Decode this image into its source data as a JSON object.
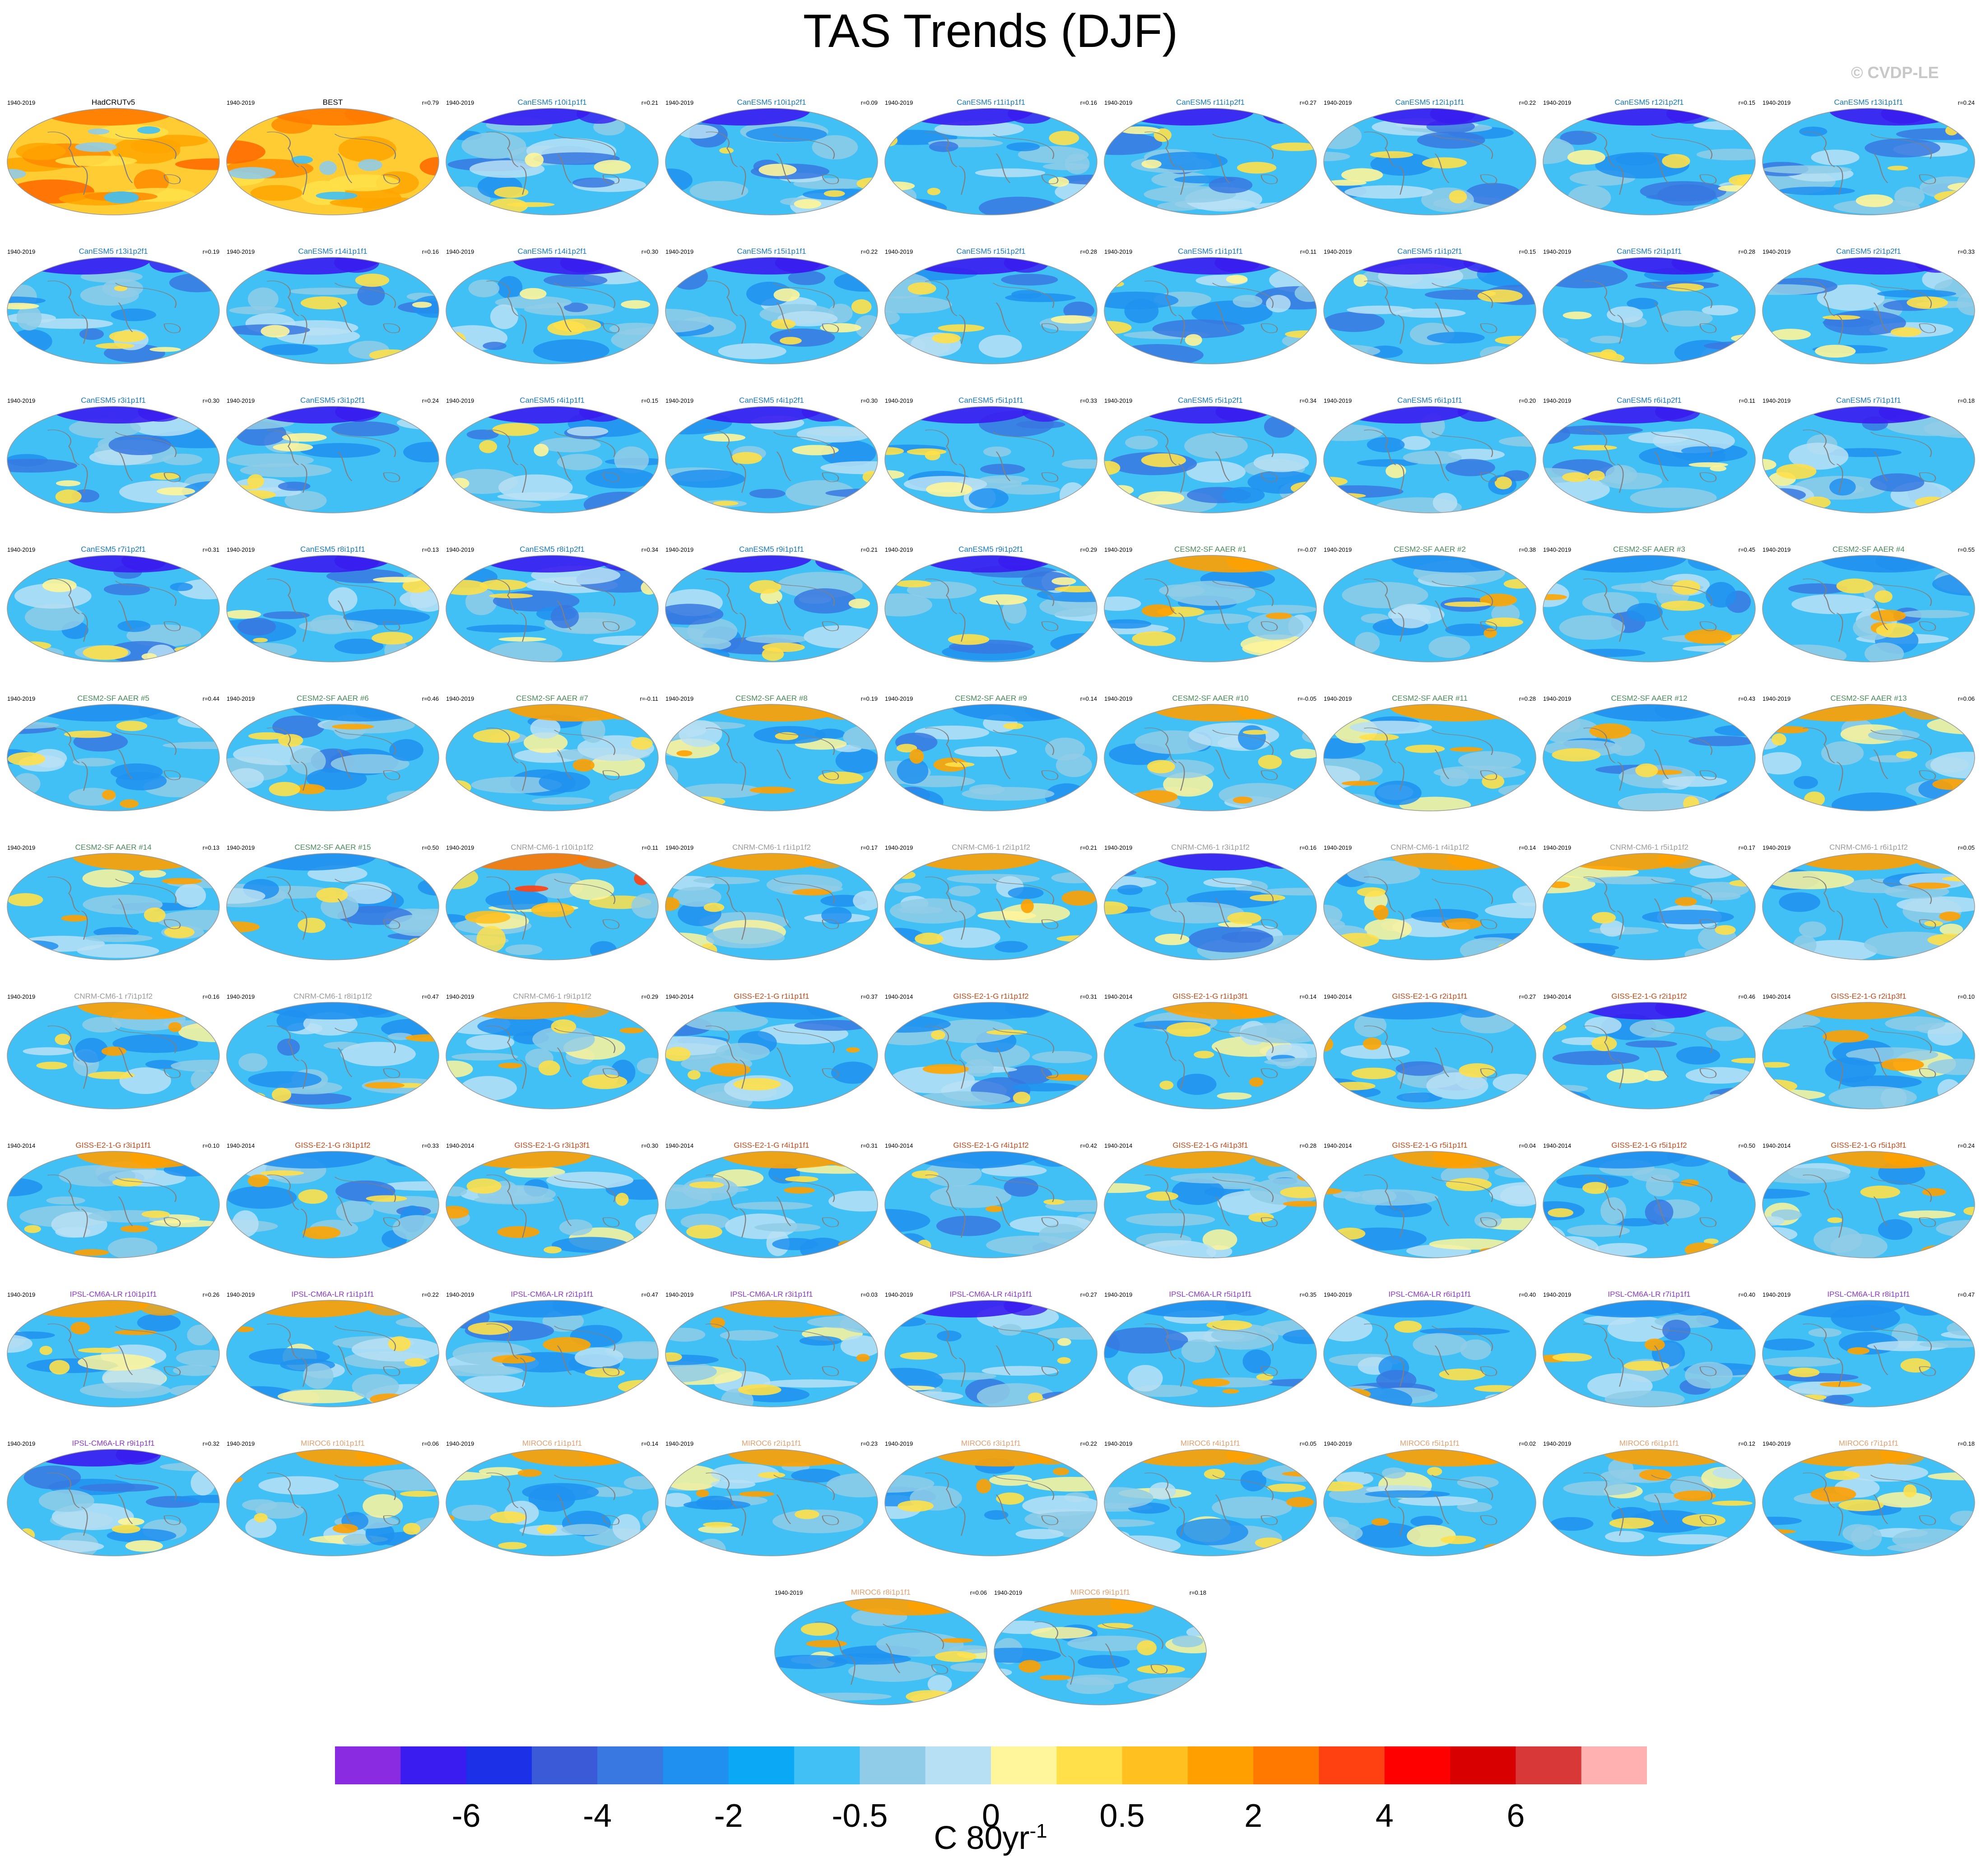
{
  "title": "TAS Trends (DJF)",
  "watermark": "© CVDP-LE",
  "colorbar": {
    "unit_text": "C 80yr",
    "unit_exponent": "-1",
    "tick_labels": [
      "-6",
      "-4",
      "-2",
      "-0.5",
      "0",
      "0.5",
      "2",
      "4",
      "6"
    ],
    "colors": [
      "#8a2be2",
      "#3a1cf0",
      "#1c30e8",
      "#3a5ad8",
      "#3878e0",
      "#2090f0",
      "#0aa8f5",
      "#40c0f5",
      "#90cce8",
      "#b8e0f5",
      "#fff59a",
      "#ffe04a",
      "#ffc020",
      "#ffa000",
      "#ff7800",
      "#ff4010",
      "#ff0000",
      "#d80000",
      "#d83838",
      "#ffb0b0"
    ]
  },
  "group_colors": {
    "obs": "#000000",
    "CanESM5": "#1a7ab8",
    "CESM2-SF AAER": "#4a8a5a",
    "CNRM-CM6-1": "#9a9a9a",
    "GISS-E2-1-G": "#c04a1a",
    "IPSL-CM6A-LR": "#8a3ac8",
    "MIROC6": "#e0a070"
  },
  "chart_data": {
    "type": "heatmap",
    "title": "TAS Trends (DJF)",
    "variable": "TAS",
    "season": "DJF",
    "colorbar_label": "C 80yr-1",
    "colorbar_ticks": [
      -6,
      -4,
      -2,
      -0.5,
      0,
      0.5,
      2,
      4,
      6
    ],
    "panels": [
      {
        "label": "HadCRUTv5",
        "period": "1940-2019",
        "r": "",
        "group": "obs",
        "palette": "warm"
      },
      {
        "label": "BEST",
        "period": "1940-2019",
        "r": "r=0.79",
        "group": "obs",
        "palette": "warm"
      },
      {
        "label": "CanESM5 r10i1p1f1",
        "period": "1940-2019",
        "r": "r=0.21",
        "group": "CanESM5",
        "palette": "arctic"
      },
      {
        "label": "CanESM5 r10i1p2f1",
        "period": "1940-2019",
        "r": "r=0.09",
        "group": "CanESM5",
        "palette": "arctic"
      },
      {
        "label": "CanESM5 r11i1p1f1",
        "period": "1940-2019",
        "r": "r=0.16",
        "group": "CanESM5",
        "palette": "arctic"
      },
      {
        "label": "CanESM5 r11i1p2f1",
        "period": "1940-2019",
        "r": "r=0.27",
        "group": "CanESM5",
        "palette": "arctic"
      },
      {
        "label": "CanESM5 r12i1p1f1",
        "period": "1940-2019",
        "r": "r=0.22",
        "group": "CanESM5",
        "palette": "arctic"
      },
      {
        "label": "CanESM5 r12i1p2f1",
        "period": "1940-2019",
        "r": "r=0.15",
        "group": "CanESM5",
        "palette": "arctic"
      },
      {
        "label": "CanESM5 r13i1p1f1",
        "period": "1940-2019",
        "r": "r=0.24",
        "group": "CanESM5",
        "palette": "arctic"
      },
      {
        "label": "CanESM5 r13i1p2f1",
        "period": "1940-2019",
        "r": "r=0.19",
        "group": "CanESM5",
        "palette": "arctic"
      },
      {
        "label": "CanESM5 r14i1p1f1",
        "period": "1940-2019",
        "r": "r=0.16",
        "group": "CanESM5",
        "palette": "arctic"
      },
      {
        "label": "CanESM5 r14i1p2f1",
        "period": "1940-2019",
        "r": "r=0.30",
        "group": "CanESM5",
        "palette": "arctic"
      },
      {
        "label": "CanESM5 r15i1p1f1",
        "period": "1940-2019",
        "r": "r=0.22",
        "group": "CanESM5",
        "palette": "arctic"
      },
      {
        "label": "CanESM5 r15i1p2f1",
        "period": "1940-2019",
        "r": "r=0.28",
        "group": "CanESM5",
        "palette": "arctic"
      },
      {
        "label": "CanESM5 r1i1p1f1",
        "period": "1940-2019",
        "r": "r=0.11",
        "group": "CanESM5",
        "palette": "arctic"
      },
      {
        "label": "CanESM5 r1i1p2f1",
        "period": "1940-2019",
        "r": "r=0.15",
        "group": "CanESM5",
        "palette": "arctic"
      },
      {
        "label": "CanESM5 r2i1p1f1",
        "period": "1940-2019",
        "r": "r=0.28",
        "group": "CanESM5",
        "palette": "arctic"
      },
      {
        "label": "CanESM5 r2i1p2f1",
        "period": "1940-2019",
        "r": "r=0.33",
        "group": "CanESM5",
        "palette": "arctic"
      },
      {
        "label": "CanESM5 r3i1p1f1",
        "period": "1940-2019",
        "r": "r=0.30",
        "group": "CanESM5",
        "palette": "arctic"
      },
      {
        "label": "CanESM5 r3i1p2f1",
        "period": "1940-2019",
        "r": "r=0.24",
        "group": "CanESM5",
        "palette": "arctic"
      },
      {
        "label": "CanESM5 r4i1p1f1",
        "period": "1940-2019",
        "r": "r=0.15",
        "group": "CanESM5",
        "palette": "arctic"
      },
      {
        "label": "CanESM5 r4i1p2f1",
        "period": "1940-2019",
        "r": "r=0.30",
        "group": "CanESM5",
        "palette": "arctic"
      },
      {
        "label": "CanESM5 r5i1p1f1",
        "period": "1940-2019",
        "r": "r=0.33",
        "group": "CanESM5",
        "palette": "arctic"
      },
      {
        "label": "CanESM5 r5i1p2f1",
        "period": "1940-2019",
        "r": "r=0.34",
        "group": "CanESM5",
        "palette": "arctic"
      },
      {
        "label": "CanESM5 r6i1p1f1",
        "period": "1940-2019",
        "r": "r=0.20",
        "group": "CanESM5",
        "palette": "arctic"
      },
      {
        "label": "CanESM5 r6i1p2f1",
        "period": "1940-2019",
        "r": "r=0.11",
        "group": "CanESM5",
        "palette": "arctic"
      },
      {
        "label": "CanESM5 r7i1p1f1",
        "period": "1940-2019",
        "r": "r=0.18",
        "group": "CanESM5",
        "palette": "arctic"
      },
      {
        "label": "CanESM5 r7i1p2f1",
        "period": "1940-2019",
        "r": "r=0.31",
        "group": "CanESM5",
        "palette": "arctic"
      },
      {
        "label": "CanESM5 r8i1p1f1",
        "period": "1940-2019",
        "r": "r=0.13",
        "group": "CanESM5",
        "palette": "arctic"
      },
      {
        "label": "CanESM5 r8i1p2f1",
        "period": "1940-2019",
        "r": "r=0.34",
        "group": "CanESM5",
        "palette": "arctic"
      },
      {
        "label": "CanESM5 r9i1p1f1",
        "period": "1940-2019",
        "r": "r=0.21",
        "group": "CanESM5",
        "palette": "arctic"
      },
      {
        "label": "CanESM5 r9i1p2f1",
        "period": "1940-2019",
        "r": "r=0.29",
        "group": "CanESM5",
        "palette": "arctic"
      },
      {
        "label": "CESM2-SF AAER #1",
        "period": "1940-2019",
        "r": "r=-0.07",
        "group": "CESM2-SF AAER",
        "palette": "mixed"
      },
      {
        "label": "CESM2-SF AAER #2",
        "period": "1940-2019",
        "r": "r=0.38",
        "group": "CESM2-SF AAER",
        "palette": "cool"
      },
      {
        "label": "CESM2-SF AAER #3",
        "period": "1940-2019",
        "r": "r=0.45",
        "group": "CESM2-SF AAER",
        "palette": "cool"
      },
      {
        "label": "CESM2-SF AAER #4",
        "period": "1940-2019",
        "r": "r=0.55",
        "group": "CESM2-SF AAER",
        "palette": "cool"
      },
      {
        "label": "CESM2-SF AAER #5",
        "period": "1940-2019",
        "r": "r=0.44",
        "group": "CESM2-SF AAER",
        "palette": "cool"
      },
      {
        "label": "CESM2-SF AAER #6",
        "period": "1940-2019",
        "r": "r=0.46",
        "group": "CESM2-SF AAER",
        "palette": "cool"
      },
      {
        "label": "CESM2-SF AAER #7",
        "period": "1940-2019",
        "r": "r=-0.11",
        "group": "CESM2-SF AAER",
        "palette": "mixed"
      },
      {
        "label": "CESM2-SF AAER #8",
        "period": "1940-2019",
        "r": "r=0.19",
        "group": "CESM2-SF AAER",
        "palette": "mixed"
      },
      {
        "label": "CESM2-SF AAER #9",
        "period": "1940-2019",
        "r": "r=0.14",
        "group": "CESM2-SF AAER",
        "palette": "cool"
      },
      {
        "label": "CESM2-SF AAER #10",
        "period": "1940-2019",
        "r": "r=-0.05",
        "group": "CESM2-SF AAER",
        "palette": "mixed"
      },
      {
        "label": "CESM2-SF AAER #11",
        "period": "1940-2019",
        "r": "r=0.28",
        "group": "CESM2-SF AAER",
        "palette": "mixed"
      },
      {
        "label": "CESM2-SF AAER #12",
        "period": "1940-2019",
        "r": "r=0.43",
        "group": "CESM2-SF AAER",
        "palette": "cool"
      },
      {
        "label": "CESM2-SF AAER #13",
        "period": "1940-2019",
        "r": "r=0.06",
        "group": "CESM2-SF AAER",
        "palette": "mixed"
      },
      {
        "label": "CESM2-SF AAER #14",
        "period": "1940-2019",
        "r": "r=0.13",
        "group": "CESM2-SF AAER",
        "palette": "mixed"
      },
      {
        "label": "CESM2-SF AAER #15",
        "period": "1940-2019",
        "r": "r=0.50",
        "group": "CESM2-SF AAER",
        "palette": "cool"
      },
      {
        "label": "CNRM-CM6-1 r10i1p1f2",
        "period": "1940-2019",
        "r": "r=0.11",
        "group": "CNRM-CM6-1",
        "palette": "hot"
      },
      {
        "label": "CNRM-CM6-1 r1i1p1f2",
        "period": "1940-2019",
        "r": "r=0.17",
        "group": "CNRM-CM6-1",
        "palette": "mixed"
      },
      {
        "label": "CNRM-CM6-1 r2i1p1f2",
        "period": "1940-2019",
        "r": "r=0.21",
        "group": "CNRM-CM6-1",
        "palette": "mixed"
      },
      {
        "label": "CNRM-CM6-1 r3i1p1f2",
        "period": "1940-2019",
        "r": "r=0.16",
        "group": "CNRM-CM6-1",
        "palette": "arctic"
      },
      {
        "label": "CNRM-CM6-1 r4i1p1f2",
        "period": "1940-2019",
        "r": "r=0.14",
        "group": "CNRM-CM6-1",
        "palette": "mixed"
      },
      {
        "label": "CNRM-CM6-1 r5i1p1f2",
        "period": "1940-2019",
        "r": "r=0.17",
        "group": "CNRM-CM6-1",
        "palette": "mixed"
      },
      {
        "label": "CNRM-CM6-1 r6i1p1f2",
        "period": "1940-2019",
        "r": "r=0.05",
        "group": "CNRM-CM6-1",
        "palette": "mixed"
      },
      {
        "label": "CNRM-CM6-1 r7i1p1f2",
        "period": "1940-2019",
        "r": "r=0.16",
        "group": "CNRM-CM6-1",
        "palette": "mixed"
      },
      {
        "label": "CNRM-CM6-1 r8i1p1f2",
        "period": "1940-2019",
        "r": "r=0.47",
        "group": "CNRM-CM6-1",
        "palette": "cool"
      },
      {
        "label": "CNRM-CM6-1 r9i1p1f2",
        "period": "1940-2019",
        "r": "r=0.29",
        "group": "CNRM-CM6-1",
        "palette": "mixed"
      },
      {
        "label": "GISS-E2-1-G r1i1p1f1",
        "period": "1940-2014",
        "r": "r=0.37",
        "group": "GISS-E2-1-G",
        "palette": "cool"
      },
      {
        "label": "GISS-E2-1-G r1i1p1f2",
        "period": "1940-2014",
        "r": "r=0.31",
        "group": "GISS-E2-1-G",
        "palette": "cool"
      },
      {
        "label": "GISS-E2-1-G r1i1p3f1",
        "period": "1940-2014",
        "r": "r=0.14",
        "group": "GISS-E2-1-G",
        "palette": "mixed"
      },
      {
        "label": "GISS-E2-1-G r2i1p1f1",
        "period": "1940-2014",
        "r": "r=0.27",
        "group": "GISS-E2-1-G",
        "palette": "cool"
      },
      {
        "label": "GISS-E2-1-G r2i1p1f2",
        "period": "1940-2014",
        "r": "r=0.46",
        "group": "GISS-E2-1-G",
        "palette": "arctic"
      },
      {
        "label": "GISS-E2-1-G r2i1p3f1",
        "period": "1940-2014",
        "r": "r=0.10",
        "group": "GISS-E2-1-G",
        "palette": "mixed"
      },
      {
        "label": "GISS-E2-1-G r3i1p1f1",
        "period": "1940-2014",
        "r": "r=0.10",
        "group": "GISS-E2-1-G",
        "palette": "mixed"
      },
      {
        "label": "GISS-E2-1-G r3i1p1f2",
        "period": "1940-2014",
        "r": "r=0.33",
        "group": "GISS-E2-1-G",
        "palette": "cool"
      },
      {
        "label": "GISS-E2-1-G r3i1p3f1",
        "period": "1940-2014",
        "r": "r=0.30",
        "group": "GISS-E2-1-G",
        "palette": "mixed"
      },
      {
        "label": "GISS-E2-1-G r4i1p1f1",
        "period": "1940-2014",
        "r": "r=0.31",
        "group": "GISS-E2-1-G",
        "palette": "mixed"
      },
      {
        "label": "GISS-E2-1-G r4i1p1f2",
        "period": "1940-2014",
        "r": "r=0.42",
        "group": "GISS-E2-1-G",
        "palette": "cool"
      },
      {
        "label": "GISS-E2-1-G r4i1p3f1",
        "period": "1940-2014",
        "r": "r=0.28",
        "group": "GISS-E2-1-G",
        "palette": "mixed"
      },
      {
        "label": "GISS-E2-1-G r5i1p1f1",
        "period": "1940-2014",
        "r": "r=0.04",
        "group": "GISS-E2-1-G",
        "palette": "mixed"
      },
      {
        "label": "GISS-E2-1-G r5i1p1f2",
        "period": "1940-2014",
        "r": "r=0.50",
        "group": "GISS-E2-1-G",
        "palette": "cool"
      },
      {
        "label": "GISS-E2-1-G r5i1p3f1",
        "period": "1940-2014",
        "r": "r=0.24",
        "group": "GISS-E2-1-G",
        "palette": "mixed"
      },
      {
        "label": "IPSL-CM6A-LR r10i1p1f1",
        "period": "1940-2019",
        "r": "r=0.26",
        "group": "IPSL-CM6A-LR",
        "palette": "mixed"
      },
      {
        "label": "IPSL-CM6A-LR r1i1p1f1",
        "period": "1940-2019",
        "r": "r=0.22",
        "group": "IPSL-CM6A-LR",
        "palette": "mixed"
      },
      {
        "label": "IPSL-CM6A-LR r2i1p1f1",
        "period": "1940-2019",
        "r": "r=0.47",
        "group": "IPSL-CM6A-LR",
        "palette": "cool"
      },
      {
        "label": "IPSL-CM6A-LR r3i1p1f1",
        "period": "1940-2019",
        "r": "r=0.03",
        "group": "IPSL-CM6A-LR",
        "palette": "mixed"
      },
      {
        "label": "IPSL-CM6A-LR r4i1p1f1",
        "period": "1940-2019",
        "r": "r=0.27",
        "group": "IPSL-CM6A-LR",
        "palette": "arctic"
      },
      {
        "label": "IPSL-CM6A-LR r5i1p1f1",
        "period": "1940-2019",
        "r": "r=0.35",
        "group": "IPSL-CM6A-LR",
        "palette": "cool"
      },
      {
        "label": "IPSL-CM6A-LR r6i1p1f1",
        "period": "1940-2019",
        "r": "r=0.40",
        "group": "IPSL-CM6A-LR",
        "palette": "cool"
      },
      {
        "label": "IPSL-CM6A-LR r7i1p1f1",
        "period": "1940-2019",
        "r": "r=0.40",
        "group": "IPSL-CM6A-LR",
        "palette": "cool"
      },
      {
        "label": "IPSL-CM6A-LR r8i1p1f1",
        "period": "1940-2019",
        "r": "r=0.47",
        "group": "IPSL-CM6A-LR",
        "palette": "cool"
      },
      {
        "label": "IPSL-CM6A-LR r9i1p1f1",
        "period": "1940-2019",
        "r": "r=0.32",
        "group": "IPSL-CM6A-LR",
        "palette": "arctic"
      },
      {
        "label": "MIROC6 r10i1p1f1",
        "period": "1940-2019",
        "r": "r=0.06",
        "group": "MIROC6",
        "palette": "mixed"
      },
      {
        "label": "MIROC6 r1i1p1f1",
        "period": "1940-2019",
        "r": "r=0.14",
        "group": "MIROC6",
        "palette": "mixed"
      },
      {
        "label": "MIROC6 r2i1p1f1",
        "period": "1940-2019",
        "r": "r=0.23",
        "group": "MIROC6",
        "palette": "mixed"
      },
      {
        "label": "MIROC6 r3i1p1f1",
        "period": "1940-2019",
        "r": "r=0.22",
        "group": "MIROC6",
        "palette": "mixed"
      },
      {
        "label": "MIROC6 r4i1p1f1",
        "period": "1940-2019",
        "r": "r=0.05",
        "group": "MIROC6",
        "palette": "mixed"
      },
      {
        "label": "MIROC6 r5i1p1f1",
        "period": "1940-2019",
        "r": "r=0.02",
        "group": "MIROC6",
        "palette": "mixed"
      },
      {
        "label": "MIROC6 r6i1p1f1",
        "period": "1940-2019",
        "r": "r=0.12",
        "group": "MIROC6",
        "palette": "mixed"
      },
      {
        "label": "MIROC6 r7i1p1f1",
        "period": "1940-2019",
        "r": "r=0.18",
        "group": "MIROC6",
        "palette": "mixed"
      },
      {
        "label": "MIROC6 r8i1p1f1",
        "period": "1940-2019",
        "r": "r=0.06",
        "group": "MIROC6",
        "palette": "mixed"
      },
      {
        "label": "MIROC6 r9i1p1f1",
        "period": "1940-2019",
        "r": "r=0.18",
        "group": "MIROC6",
        "palette": "mixed"
      }
    ]
  }
}
